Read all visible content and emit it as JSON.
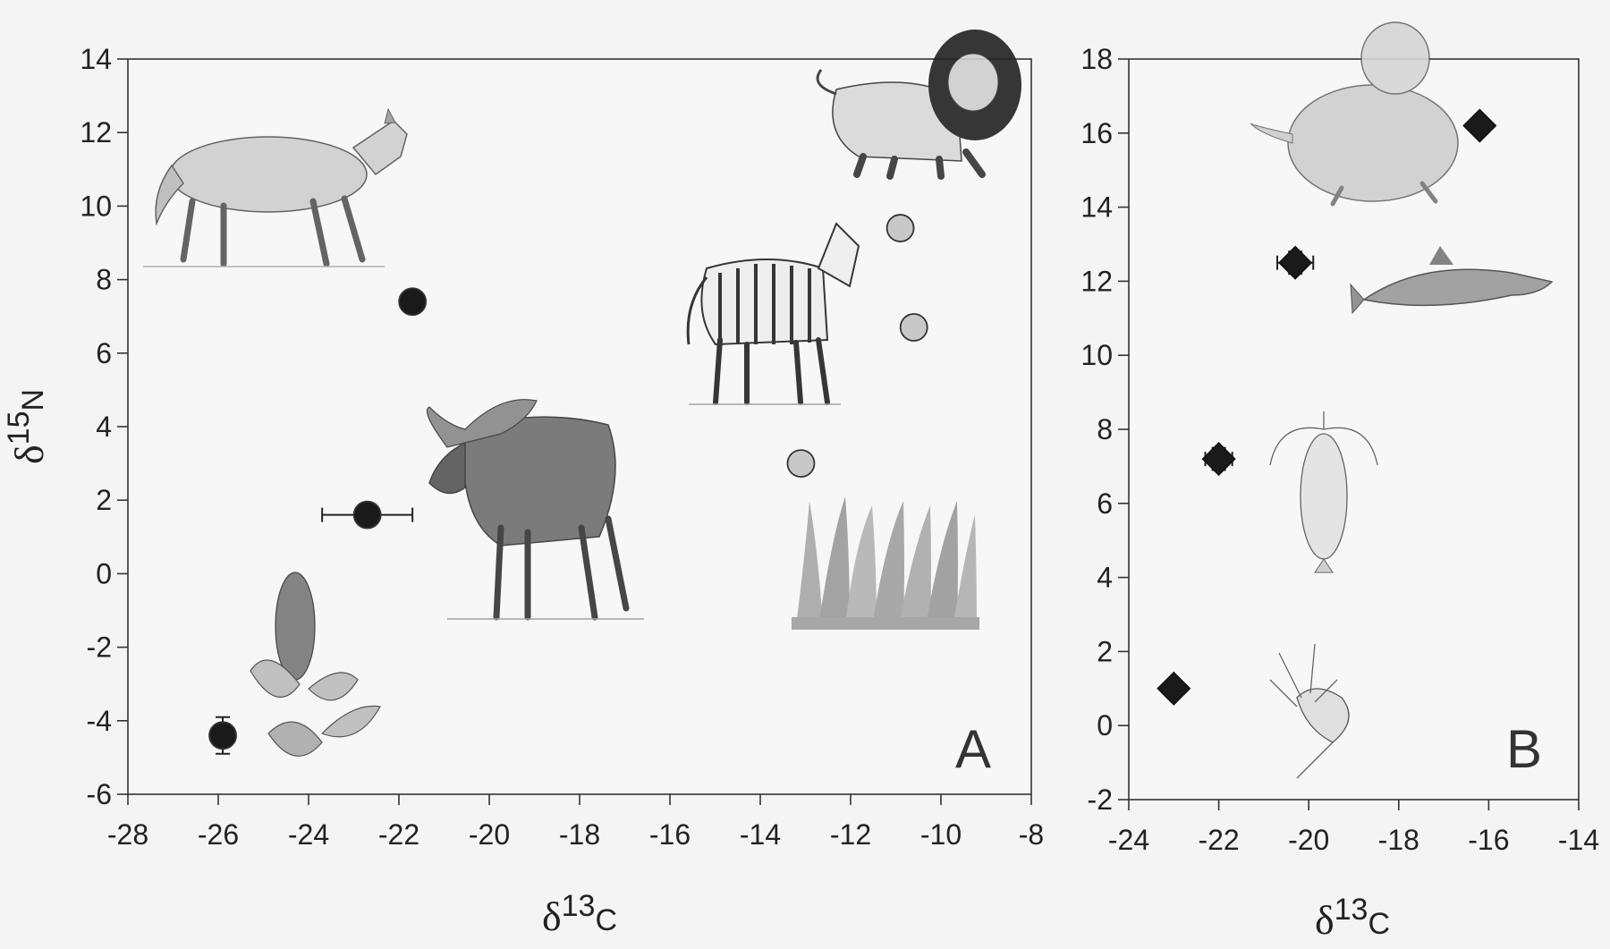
{
  "chart_data": [
    {
      "panel": "A",
      "type": "scatter",
      "title": "",
      "xlabel": "δ13C",
      "ylabel": "δ15N",
      "xlim": [
        -28,
        -8
      ],
      "ylim": [
        -6,
        14
      ],
      "xticks": [
        -28,
        -26,
        -24,
        -22,
        -20,
        -18,
        -16,
        -14,
        -12,
        -10,
        -8
      ],
      "yticks": [
        -6,
        -4,
        -2,
        0,
        2,
        4,
        6,
        8,
        10,
        12,
        14
      ],
      "grid": false,
      "legend": "none",
      "series": [
        {
          "marker": "circle",
          "color": "#1a1a1a",
          "points": [
            {
              "x": -21.7,
              "y": 7.4,
              "xerr": 0,
              "yerr": 0
            },
            {
              "x": -22.7,
              "y": 1.6,
              "xerr": 1.0,
              "yerr": 0.3
            },
            {
              "x": -25.9,
              "y": -4.4,
              "xerr": 0,
              "yerr": 0.5
            }
          ]
        },
        {
          "marker": "circle",
          "color": "#c8c8c8",
          "points": [
            {
              "x": -10.9,
              "y": 9.4,
              "xerr": 0,
              "yerr": 0
            },
            {
              "x": -10.6,
              "y": 6.7,
              "xerr": 0,
              "yerr": 0
            },
            {
              "x": -13.1,
              "y": 3.0,
              "xerr": 0,
              "yerr": 0.3
            }
          ]
        }
      ],
      "illustrations": [
        "wolf-illustration",
        "moose-illustration",
        "willow-catkin-illustration",
        "lion-illustration",
        "zebra-illustration",
        "grass-illustration"
      ]
    },
    {
      "panel": "B",
      "type": "scatter",
      "title": "",
      "xlabel": "δ13C",
      "ylabel": "",
      "xlim": [
        -24,
        -14
      ],
      "ylim": [
        -2,
        18
      ],
      "xticks": [
        -24,
        -22,
        -20,
        -18,
        -16,
        -14
      ],
      "yticks": [
        -2,
        0,
        2,
        4,
        6,
        8,
        10,
        12,
        14,
        16,
        18
      ],
      "grid": false,
      "legend": "none",
      "series": [
        {
          "marker": "diamond",
          "color": "#1a1a1a",
          "points": [
            {
              "x": -16.2,
              "y": 16.2,
              "xerr": 0.2,
              "yerr": 0.2
            },
            {
              "x": -20.3,
              "y": 12.5,
              "xerr": 0.4,
              "yerr": 0.3
            },
            {
              "x": -22.0,
              "y": 7.2,
              "xerr": 0.3,
              "yerr": 0.3
            },
            {
              "x": -23.0,
              "y": 1.0,
              "xerr": 0,
              "yerr": 0
            }
          ]
        }
      ],
      "illustrations": [
        "seal-illustration",
        "salmon-illustration",
        "krill-illustration",
        "plankton-illustration"
      ]
    }
  ]
}
